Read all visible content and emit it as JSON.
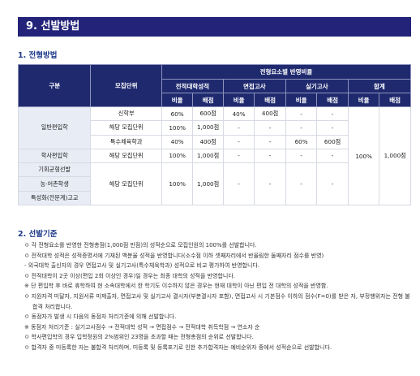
{
  "section_title": "9. 선발방법",
  "sub1": "1. 전형방법",
  "sub2": "2. 선발기준",
  "table": {
    "h_gubun": "구분",
    "h_unit": "모집단위",
    "h_ratio": "전형요소별 반영비율",
    "h_groups": [
      "전적대학성적",
      "면접고사",
      "실기고사",
      "합계"
    ],
    "h_sub": [
      "비율",
      "배점",
      "비율",
      "배점",
      "비율",
      "배점",
      "비율",
      "배점"
    ],
    "gen_label": "일반편입학",
    "gen_rows": [
      {
        "unit": "신학부",
        "c": [
          "60%",
          "600점",
          "40%",
          "400점",
          "-",
          "-"
        ]
      },
      {
        "unit": "해당 모집단위",
        "c": [
          "100%",
          "1,000점",
          "-",
          "-",
          "-",
          "-"
        ]
      },
      {
        "unit": "특수체육학과",
        "c": [
          "40%",
          "400점",
          "-",
          "-",
          "60%",
          "600점"
        ]
      }
    ],
    "total_ratio": "100%",
    "total_score": "1,000점",
    "hak_label": "학사편입학",
    "hak_row": {
      "unit": "해당 모집단위",
      "c": [
        "100%",
        "1,000점",
        "-",
        "-",
        "-",
        "-"
      ]
    },
    "special_labels": [
      "기회균형선발",
      "농·어촌학생",
      "특성화(전문계)고교"
    ],
    "special_row": {
      "unit": "해당 모집단위",
      "c": [
        "100%",
        "1,000점",
        "-",
        "-",
        "-",
        "-"
      ]
    }
  },
  "notes": [
    "ㅇ 각 전형요소를 반영한 전형총점(1,000점 만점)의 성적순으로 모집인원의 100%를 선발합니다.",
    "ㅇ 전적대학 성적은 성적증명서에 기재된 백분율 성적을 반영합니다(소수점 이하 셋째자리에서 반올림한 둘째자리 점수를 반영)",
    "- 외국대학 출신자의 경우 면접고사 및 실기고사(특수체육학과) 성적으로 비교 평가하여 반영합니다.",
    "ㅇ 전적대학이 2곳 이상(편입 2회 이상인 경우)일 경우는 최종 대학의 성적을 반영합니다.",
    "※ 단 편입학 후 바로 휴학하여 현 소속대학에서 한 학기도 이수하지 않은 경우는 현재 대학이 아닌 편입 전 대학의 성적을 반영함.",
    "ㅇ 지원자격 미달자, 지원서류 미제출자, 면접고사 및 실기고사 결시자(부분결시자 포함), 면접고사 시 기본점수 이하의 점수(F=0)를 받은 자, 부정행위자는 전형 불합격 처리합니다.",
    "ㅇ 동점자가 발생 시 다음의 동점자 처리기준에 의해 선발합니다.",
    "※ 동점자 처리기준 : 실기고사점수 → 전적대학 성적 → 면접점수 → 전적대학 취득학점 → 연소자 순",
    "ㅇ 학사편입학의 경우 입학정원의 2%범위인 23명을 초과할 때는 전형총점의 순위로 선발합니다.",
    "ㅇ 합격자 중 미등록한 자는 불합격 처리하며, 미등록 및 등록포기로 인한 추가합격자는 예비순위자 중에서 성적순으로 선발합니다."
  ]
}
